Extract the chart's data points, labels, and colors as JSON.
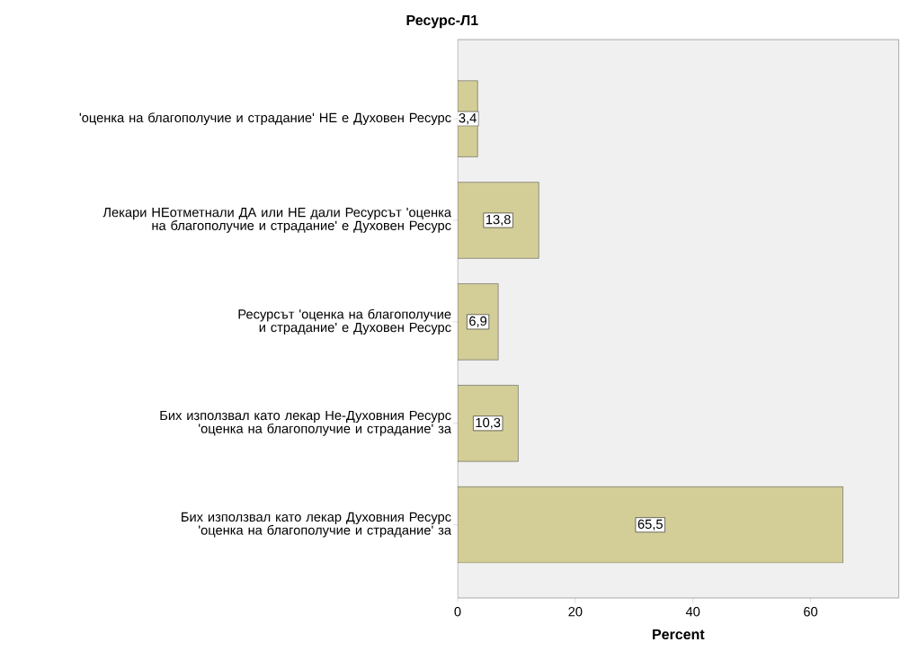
{
  "chart_data": {
    "type": "bar",
    "orientation": "horizontal",
    "title": "Ресурс-Л1",
    "xlabel": "Percent",
    "categories": [
      "'оценка на благополучие и страдание' НЕ е Духовен Ресурс",
      "Лекари НЕотметнали ДА или НЕ дали Ресурсът 'оценка на благополучие и страдание' е Духовен Ресурс",
      "Ресурсът 'оценка на благополучие и страдание' е Духовен Ресурс",
      "Бих използвал като лекар Не-Духовния Ресурс 'оценка на благополучие и страдание' за",
      "Бих използвал като лекар Духовния Ресурс 'оценка на благополучие и страдание' за"
    ],
    "values": [
      3.4,
      13.8,
      6.9,
      10.3,
      65.5
    ],
    "value_labels": [
      "3,4",
      "13,8",
      "6,9",
      "10,3",
      "65,5"
    ],
    "color": "#d3ce97",
    "xlim": [
      0,
      75
    ],
    "xticks": [
      0,
      20,
      40,
      60
    ]
  }
}
